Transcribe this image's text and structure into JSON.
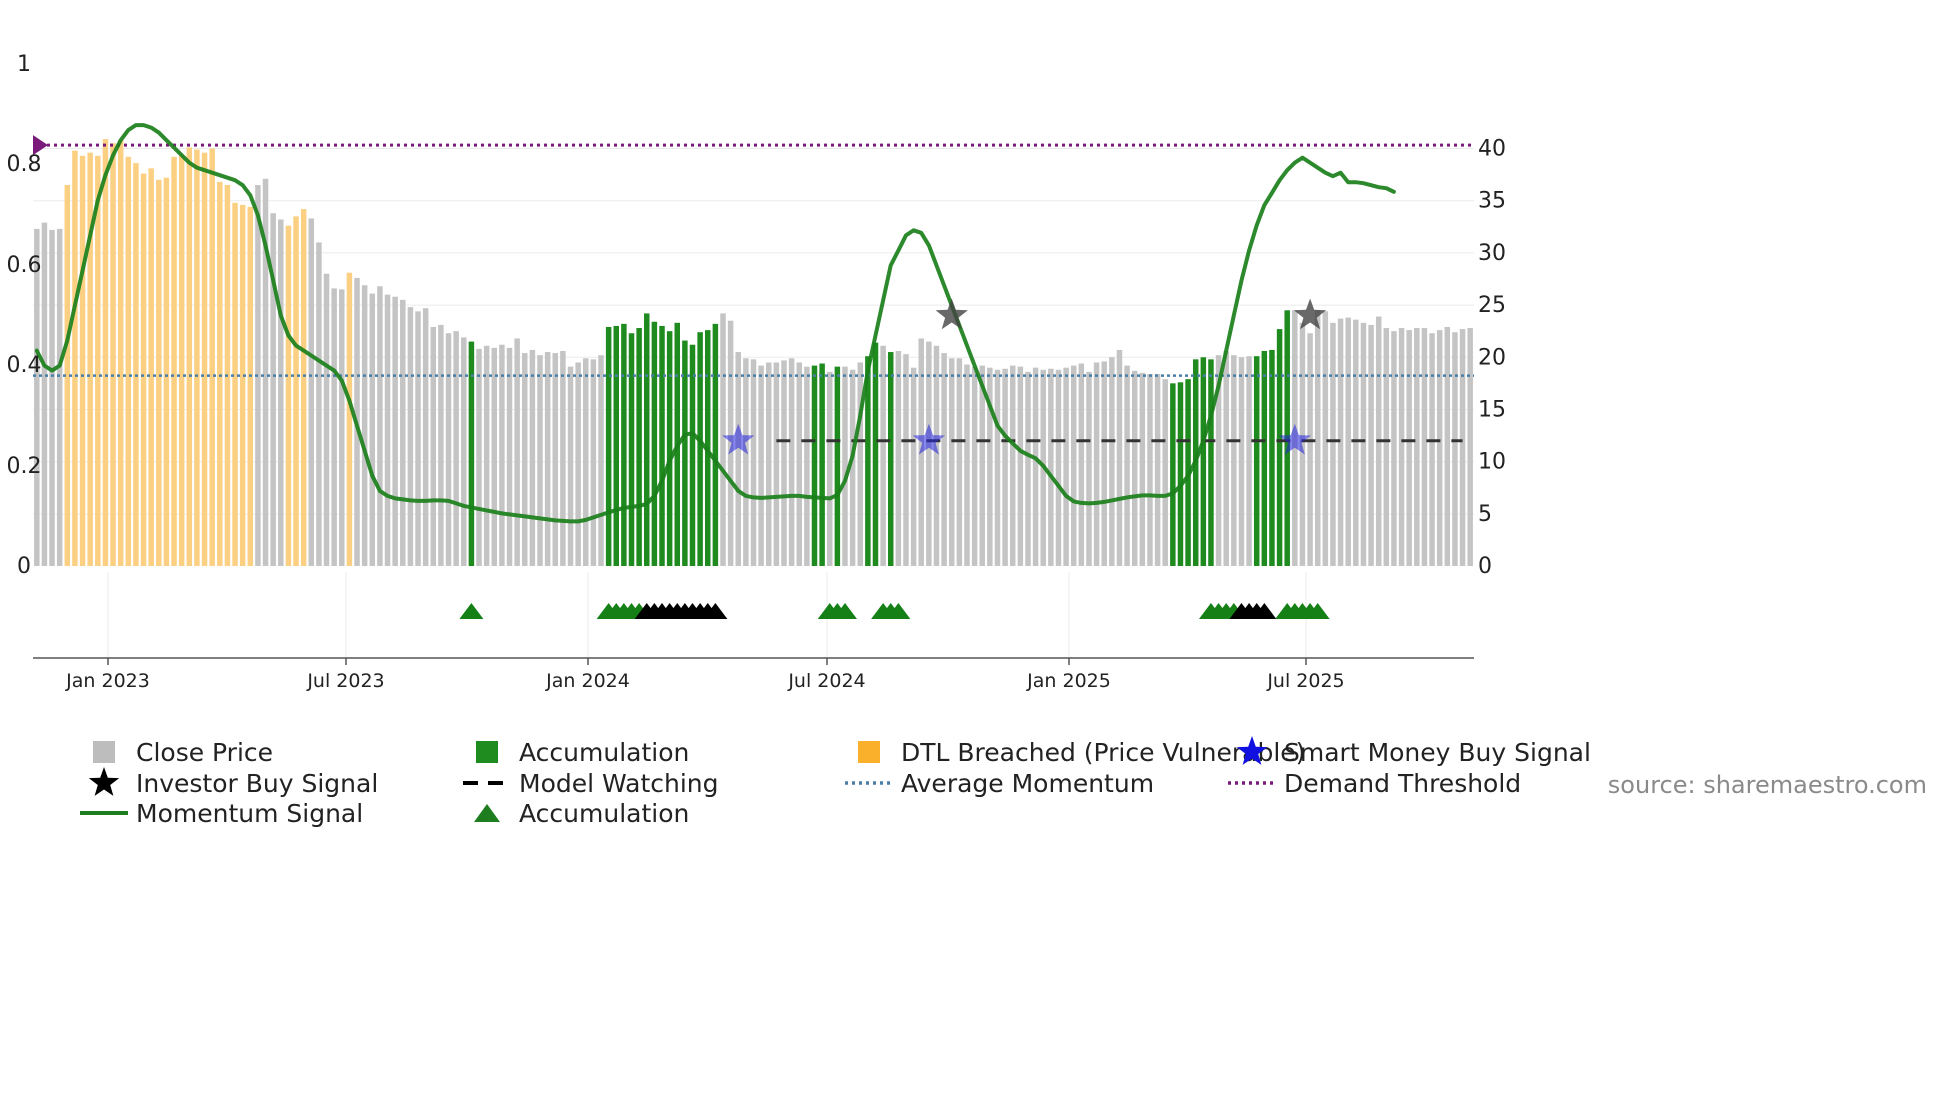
{
  "chart_data": {
    "type": "bar",
    "title": "",
    "source": "source: sharemaestro.com",
    "x_axis": {
      "ticks": [
        "Jan 2023",
        "Jul 2023",
        "Jan 2024",
        "Jul 2024",
        "Jan 2025",
        "Jul 2025"
      ]
    },
    "y_left": {
      "ticks": [
        "0",
        "0.2",
        "0.4",
        "0.6",
        "0.8",
        "1"
      ],
      "range": [
        0,
        1
      ]
    },
    "y_right": {
      "ticks": [
        "0",
        "5",
        "10",
        "15",
        "20",
        "25",
        "30",
        "35",
        "40"
      ],
      "range": [
        0,
        48
      ]
    },
    "legend": [
      {
        "label": "Close Price",
        "marker": "square",
        "color": "#bdbdbd"
      },
      {
        "label": "Investor Buy Signal",
        "marker": "star",
        "color": "#000000"
      },
      {
        "label": "Momentum Signal",
        "marker": "line",
        "color": "#1e7d1e"
      },
      {
        "label": "Accumulation",
        "marker": "square",
        "color": "#1e8c1e"
      },
      {
        "label": "Model Watching",
        "marker": "dash",
        "color": "#000000"
      },
      {
        "label": "Accumulation",
        "marker": "triangle",
        "color": "#1e7d1e"
      },
      {
        "label": "DTL Breached (Price Vulnerable)",
        "marker": "square",
        "color": "#fbb02c"
      },
      {
        "label": "Average Momentum",
        "marker": "dotted",
        "color": "#4a7fa8"
      },
      {
        "label": "Smart Money Buy Signal",
        "marker": "star",
        "color": "#1010e0"
      },
      {
        "label": "Demand Threshold",
        "marker": "dotted",
        "color": "#7a1a7a"
      }
    ],
    "colors": {
      "grey": "#c4c4c4",
      "green": "#1f8b1f",
      "orange": "#fcd083",
      "momentum": "#1a7f1a",
      "average": "#4a7fa8",
      "demand": "#7a1a7a",
      "smart": "#2222dd",
      "investor": "#444444",
      "watch": "#333333"
    },
    "bar_categories": [
      "G",
      "G",
      "G",
      "G",
      "O",
      "O",
      "O",
      "O",
      "O",
      "O",
      "O",
      "O",
      "O",
      "O",
      "O",
      "O",
      "O",
      "O",
      "O",
      "O",
      "O",
      "O",
      "O",
      "O",
      "O",
      "O",
      "O",
      "O",
      "O",
      "G",
      "G",
      "G",
      "G",
      "O",
      "O",
      "O",
      "G",
      "G",
      "G",
      "G",
      "G",
      "O",
      "G",
      "G",
      "G",
      "G",
      "G",
      "G",
      "G",
      "G",
      "G",
      "G",
      "G",
      "G",
      "G",
      "G",
      "G",
      "A",
      "G",
      "G",
      "G",
      "G",
      "G",
      "G",
      "G",
      "G",
      "G",
      "G",
      "G",
      "G",
      "G",
      "G",
      "G",
      "G",
      "G",
      "A",
      "A",
      "A",
      "A",
      "A",
      "A",
      "A",
      "A",
      "A",
      "A",
      "A",
      "A",
      "A",
      "A",
      "A",
      "G",
      "G",
      "G",
      "G",
      "G",
      "G",
      "G",
      "G",
      "G",
      "G",
      "G",
      "G",
      "A",
      "A",
      "G",
      "A",
      "G",
      "G",
      "G",
      "A",
      "A",
      "G",
      "A",
      "G",
      "G",
      "G",
      "G",
      "G",
      "G",
      "G",
      "G",
      "G",
      "G",
      "G",
      "G",
      "G",
      "G",
      "G",
      "G",
      "G",
      "G",
      "G",
      "G",
      "G",
      "G",
      "G",
      "G",
      "G",
      "G",
      "G",
      "G",
      "G",
      "G",
      "G",
      "G",
      "G",
      "G",
      "G",
      "G",
      "A",
      "A",
      "A",
      "A",
      "A",
      "A",
      "G",
      "G",
      "G",
      "G",
      "G",
      "A",
      "A",
      "A",
      "A",
      "A",
      "G",
      "G",
      "G",
      "G",
      "G",
      "G",
      "G",
      "G",
      "G",
      "G",
      "G",
      "G",
      "G",
      "G",
      "G",
      "G",
      "G",
      "G",
      "G",
      "G",
      "G",
      "G",
      "G",
      "G"
    ],
    "close_price": [
      32.3,
      32.9,
      32.2,
      32.3,
      36.5,
      39.8,
      39.3,
      39.6,
      39.3,
      40.9,
      40.5,
      40.8,
      39.2,
      38.6,
      37.6,
      38.1,
      37.0,
      37.2,
      39.2,
      39.3,
      40.1,
      39.9,
      39.6,
      40.0,
      36.8,
      36.5,
      34.8,
      34.6,
      34.4,
      36.5,
      37.1,
      33.8,
      33.2,
      32.6,
      33.5,
      34.2,
      33.3,
      31.0,
      28.0,
      26.6,
      26.5,
      28.1,
      27.6,
      26.9,
      26.1,
      26.8,
      26.0,
      25.8,
      25.5,
      24.8,
      24.4,
      24.7,
      22.9,
      23.1,
      22.3,
      22.5,
      21.9,
      21.5,
      20.8,
      21.1,
      20.9,
      21.2,
      20.9,
      21.8,
      20.4,
      20.7,
      20.2,
      20.5,
      20.4,
      20.6,
      19.1,
      19.5,
      19.9,
      19.8,
      20.2,
      22.9,
      23.0,
      23.2,
      22.3,
      22.8,
      24.2,
      23.4,
      23.0,
      22.5,
      23.3,
      21.6,
      21.2,
      22.4,
      22.6,
      23.2,
      24.2,
      23.5,
      20.5,
      19.9,
      19.8,
      19.2,
      19.5,
      19.5,
      19.7,
      19.9,
      19.5,
      19.1,
      19.2,
      19.4,
      18.6,
      19.1,
      19.1,
      18.8,
      19.5,
      20.1,
      21.4,
      21.1,
      20.5,
      20.6,
      20.3,
      19.0,
      21.8,
      21.5,
      21.1,
      20.4,
      19.9,
      19.9,
      19.3,
      19.1,
      19.2,
      19.0,
      18.8,
      18.9,
      19.2,
      19.1,
      18.6,
      19.0,
      18.8,
      18.9,
      18.8,
      19.0,
      19.2,
      19.4,
      18.6,
      19.5,
      19.6,
      20.0,
      20.7,
      19.2,
      18.7,
      18.5,
      18.4,
      18.4,
      17.9,
      17.5,
      17.6,
      17.9,
      19.8,
      20.0,
      19.8,
      20.2,
      20.6,
      20.2,
      20.0,
      20.1,
      20.1,
      20.6,
      20.7,
      22.7,
      24.5,
      24.5,
      23.3,
      22.3,
      24.5,
      24.4,
      23.3,
      23.7,
      23.8,
      23.6,
      23.3,
      23.1,
      23.9,
      22.8,
      22.5,
      22.8,
      22.6,
      22.8,
      22.8,
      22.3,
      22.6,
      22.9,
      22.4,
      22.7,
      22.8
    ],
    "momentum_signal": [
      0.43,
      0.4,
      0.39,
      0.4,
      0.45,
      0.52,
      0.59,
      0.66,
      0.73,
      0.78,
      0.82,
      0.85,
      0.87,
      0.88,
      0.88,
      0.875,
      0.865,
      0.85,
      0.835,
      0.82,
      0.805,
      0.795,
      0.79,
      0.785,
      0.78,
      0.775,
      0.77,
      0.76,
      0.74,
      0.7,
      0.64,
      0.57,
      0.5,
      0.46,
      0.44,
      0.43,
      0.42,
      0.41,
      0.4,
      0.39,
      0.37,
      0.33,
      0.28,
      0.23,
      0.18,
      0.15,
      0.14,
      0.135,
      0.133,
      0.131,
      0.13,
      0.13,
      0.131,
      0.131,
      0.13,
      0.125,
      0.12,
      0.117,
      0.114,
      0.111,
      0.108,
      0.105,
      0.103,
      0.101,
      0.099,
      0.097,
      0.095,
      0.093,
      0.091,
      0.09,
      0.089,
      0.089,
      0.092,
      0.097,
      0.102,
      0.107,
      0.112,
      0.116,
      0.118,
      0.12,
      0.124,
      0.14,
      0.17,
      0.21,
      0.24,
      0.262,
      0.265,
      0.25,
      0.23,
      0.21,
      0.19,
      0.17,
      0.15,
      0.14,
      0.137,
      0.136,
      0.137,
      0.138,
      0.139,
      0.14,
      0.14,
      0.138,
      0.137,
      0.136,
      0.135,
      0.142,
      0.17,
      0.22,
      0.3,
      0.39,
      0.46,
      0.53,
      0.6,
      0.63,
      0.66,
      0.67,
      0.665,
      0.64,
      0.6,
      0.56,
      0.52,
      0.48,
      0.44,
      0.4,
      0.36,
      0.32,
      0.28,
      0.26,
      0.245,
      0.23,
      0.222,
      0.215,
      0.2,
      0.18,
      0.16,
      0.14,
      0.129,
      0.126,
      0.125,
      0.126,
      0.128,
      0.131,
      0.134,
      0.137,
      0.139,
      0.141,
      0.141,
      0.14,
      0.14,
      0.145,
      0.16,
      0.18,
      0.21,
      0.25,
      0.3,
      0.36,
      0.43,
      0.5,
      0.57,
      0.63,
      0.68,
      0.72,
      0.745,
      0.77,
      0.79,
      0.805,
      0.815,
      0.805,
      0.795,
      0.785,
      0.778,
      0.785,
      0.766,
      0.766,
      0.764,
      0.76,
      0.756,
      0.754,
      0.747
    ],
    "average_momentum": 0.38,
    "demand_threshold": 0.84,
    "model_watching": {
      "start_index": 97,
      "end_index": 187,
      "level": 0.25
    },
    "smart_money_buy_signals": [
      {
        "index": 92,
        "value": 0.25
      },
      {
        "index": 117,
        "value": 0.25
      },
      {
        "index": 165,
        "value": 0.25
      }
    ],
    "investor_buy_signals": [
      {
        "index": 120,
        "value": 0.5
      },
      {
        "index": 167,
        "value": 0.5
      }
    ],
    "accumulation_markers": {
      "green": [
        57,
        75,
        76,
        77,
        78,
        79,
        104,
        105,
        106,
        111,
        112,
        113,
        154,
        155,
        156,
        157,
        164,
        165,
        166,
        167,
        168
      ],
      "black": [
        80,
        81,
        82,
        83,
        84,
        85,
        86,
        87,
        88,
        89,
        158,
        159,
        160,
        161
      ]
    }
  }
}
